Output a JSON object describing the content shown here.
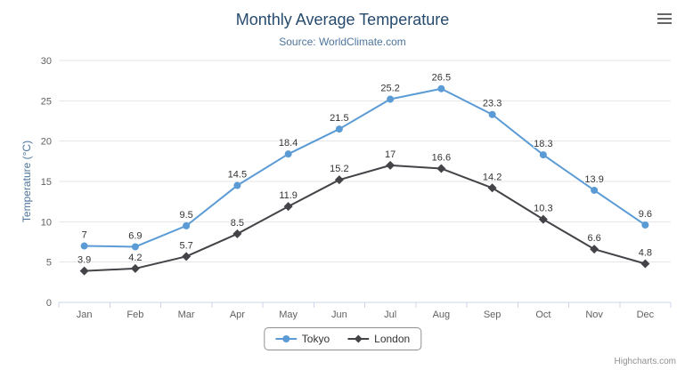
{
  "chart_data": {
    "type": "line",
    "title": "Monthly Average Temperature",
    "subtitle": "Source: WorldClimate.com",
    "categories": [
      "Jan",
      "Feb",
      "Mar",
      "Apr",
      "May",
      "Jun",
      "Jul",
      "Aug",
      "Sep",
      "Oct",
      "Nov",
      "Dec"
    ],
    "series": [
      {
        "name": "Tokyo",
        "marker": "circle",
        "color": "#5b9bd5",
        "values": [
          7,
          6.9,
          9.5,
          14.5,
          18.4,
          21.5,
          25.2,
          26.5,
          23.3,
          18.3,
          13.9,
          9.6
        ]
      },
      {
        "name": "London",
        "marker": "diamond",
        "color": "#434348",
        "values": [
          3.9,
          4.2,
          5.7,
          8.5,
          11.9,
          15.2,
          17,
          16.6,
          14.2,
          10.3,
          6.6,
          4.8
        ]
      }
    ],
    "xlabel": "",
    "ylabel": "Temperature (°C)",
    "ylim": [
      0,
      30
    ],
    "ytick_interval": 5,
    "grid": true,
    "legend_position": "bottom",
    "data_labels": true
  },
  "credits": {
    "label": "Highcharts.com"
  },
  "icons": {
    "export_menu": "hamburger-menu-icon"
  },
  "colors": {
    "title": "#274b6d",
    "subtitle": "#4d759e",
    "grid": "#e6e6e6",
    "axis_line": "#ccd6eb",
    "tick_label": "#606060",
    "data_label": "#333333",
    "legend_border": "#909090",
    "credits": "#909090"
  }
}
